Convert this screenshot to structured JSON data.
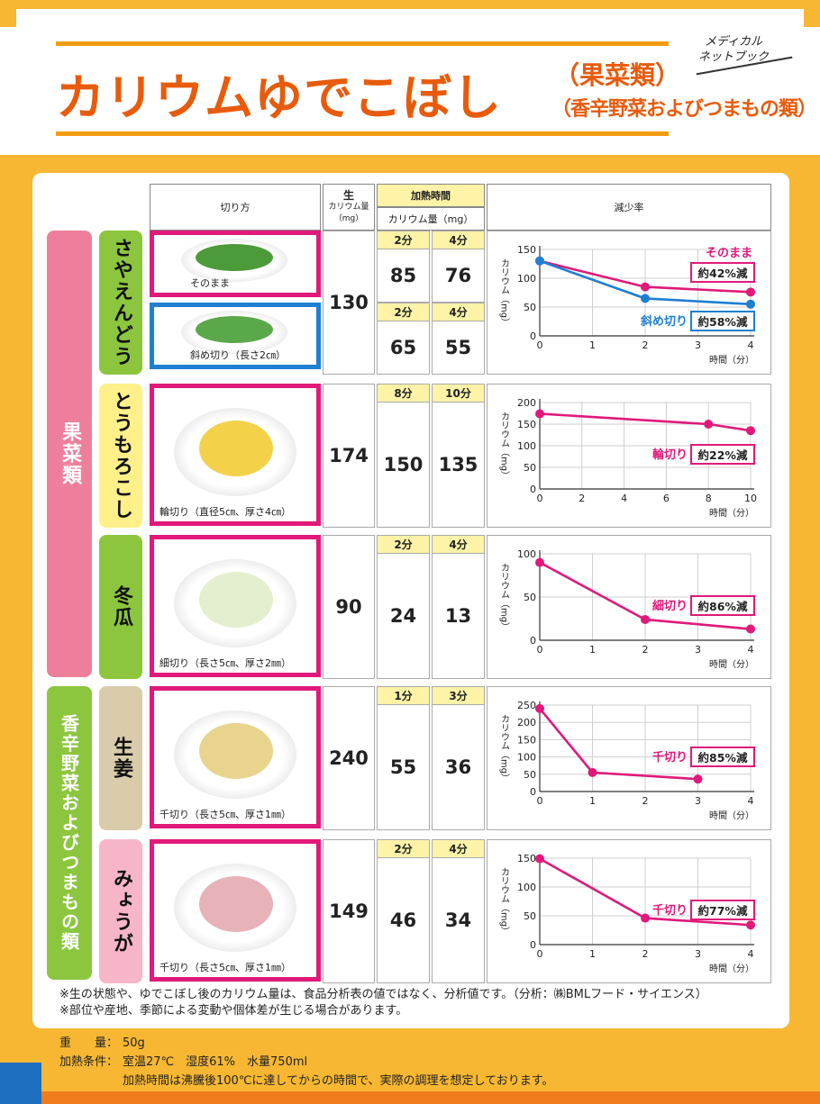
{
  "header": {
    "title_main": "カリウムゆでこぼし",
    "title_sub1": "（果菜類）",
    "title_sub2": "（香辛野菜およびつまもの類）",
    "brand_line1": "メディカル",
    "brand_line2": "ネットブック"
  },
  "table_header": {
    "cut": "切り方",
    "raw_title": "生",
    "raw_sub": "カリウム量（mg）",
    "heat_title": "加熱時間",
    "heat_sub": "カリウム量（mg）",
    "rate": "減少率"
  },
  "categories": [
    {
      "label": "果菜類",
      "color": "#ee7f9c"
    },
    {
      "label": "香辛野菜およびつまもの類",
      "color": "#8cc63f"
    }
  ],
  "rows": [
    {
      "veg": "さやえんどう",
      "veg_color": "#8cc63f",
      "raw": "130",
      "photos": [
        {
          "caption": "そのまま",
          "border": "#e0197a",
          "food": "#4c9a3a"
        },
        {
          "caption": "斜め切り（長さ2㎝）",
          "border": "#1f7fd1",
          "food": "#5aa84a"
        }
      ],
      "heat_sets": [
        {
          "t1": "2分",
          "t2": "4分",
          "v1": "85",
          "v2": "76"
        },
        {
          "t1": "2分",
          "t2": "4分",
          "v1": "65",
          "v2": "55"
        }
      ]
    },
    {
      "veg": "とうもろこし",
      "veg_color": "#fff08a",
      "raw": "174",
      "photos": [
        {
          "caption": "輪切り（直径5㎝、厚さ4㎝）",
          "border": "#e0197a",
          "food": "#f3d24a"
        }
      ],
      "heat_sets": [
        {
          "t1": "8分",
          "t2": "10分",
          "v1": "150",
          "v2": "135"
        }
      ]
    },
    {
      "veg": "冬瓜",
      "veg_color": "#8cc63f",
      "raw": "90",
      "photos": [
        {
          "caption": "細切り（長さ5㎝、厚さ2㎜）",
          "border": "#e0197a",
          "food": "#e4efcf"
        }
      ],
      "heat_sets": [
        {
          "t1": "2分",
          "t2": "4分",
          "v1": "24",
          "v2": "13"
        }
      ]
    },
    {
      "veg": "生姜",
      "veg_color": "#d9ccaa",
      "raw": "240",
      "photos": [
        {
          "caption": "千切り（長さ5㎝、厚さ1㎜）",
          "border": "#e0197a",
          "food": "#e8d48c"
        }
      ],
      "heat_sets": [
        {
          "t1": "1分",
          "t2": "3分",
          "v1": "55",
          "v2": "36"
        }
      ]
    },
    {
      "veg": "みょうが",
      "veg_color": "#f7b6c8",
      "raw": "149",
      "photos": [
        {
          "caption": "千切り（長さ5㎝、厚さ1㎜）",
          "border": "#e0197a",
          "food": "#e7b3b8"
        }
      ],
      "heat_sets": [
        {
          "t1": "2分",
          "t2": "4分",
          "v1": "46",
          "v2": "34"
        }
      ]
    }
  ],
  "chart_data": [
    {
      "type": "line",
      "ylabel": "カリウム（mg）",
      "xlabel": "時間（分）",
      "ylim": [
        0,
        150
      ],
      "yticks": [
        0,
        50,
        100,
        150
      ],
      "xlim": [
        0,
        4
      ],
      "xticks": [
        0,
        1,
        2,
        3,
        4
      ],
      "series": [
        {
          "name": "そのまま",
          "color": "#e0197a",
          "x": [
            0,
            2,
            4
          ],
          "y": [
            130,
            85,
            76
          ],
          "rate": "約42%減"
        },
        {
          "name": "斜め切り",
          "color": "#1f7fd1",
          "x": [
            0,
            2,
            4
          ],
          "y": [
            130,
            65,
            55
          ],
          "rate": "約58%減"
        }
      ]
    },
    {
      "type": "line",
      "ylabel": "カリウム（mg）",
      "xlabel": "時間（分）",
      "ylim": [
        0,
        200
      ],
      "yticks": [
        0,
        50,
        100,
        150,
        200
      ],
      "xlim": [
        0,
        10
      ],
      "xticks": [
        0,
        2,
        4,
        6,
        8,
        10
      ],
      "series": [
        {
          "name": "輪切り",
          "color": "#e0197a",
          "x": [
            0,
            8,
            10
          ],
          "y": [
            174,
            150,
            135
          ],
          "rate": "約22%減"
        }
      ]
    },
    {
      "type": "line",
      "ylabel": "カリウム（mg）",
      "xlabel": "時間（分）",
      "ylim": [
        0,
        100
      ],
      "yticks": [
        0,
        50,
        100
      ],
      "xlim": [
        0,
        4
      ],
      "xticks": [
        0,
        1,
        2,
        3,
        4
      ],
      "series": [
        {
          "name": "細切り",
          "color": "#e0197a",
          "x": [
            0,
            2,
            4
          ],
          "y": [
            90,
            24,
            13
          ],
          "rate": "約86%減"
        }
      ]
    },
    {
      "type": "line",
      "ylabel": "カリウム（mg）",
      "xlabel": "時間（分）",
      "ylim": [
        0,
        250
      ],
      "yticks": [
        0,
        50,
        100,
        150,
        200,
        250
      ],
      "xlim": [
        0,
        4
      ],
      "xticks": [
        0,
        1,
        2,
        3,
        4
      ],
      "series": [
        {
          "name": "千切り",
          "color": "#e0197a",
          "x": [
            0,
            1,
            3
          ],
          "y": [
            240,
            55,
            36
          ],
          "rate": "約85%減"
        }
      ]
    },
    {
      "type": "line",
      "ylabel": "カリウム（mg）",
      "xlabel": "時間（分）",
      "ylim": [
        0,
        150
      ],
      "yticks": [
        0,
        50,
        100,
        150
      ],
      "xlim": [
        0,
        4
      ],
      "xticks": [
        0,
        1,
        2,
        3,
        4
      ],
      "series": [
        {
          "name": "千切り",
          "color": "#e0197a",
          "x": [
            0,
            2,
            4
          ],
          "y": [
            149,
            46,
            34
          ],
          "rate": "約77%減"
        }
      ]
    }
  ],
  "notes": [
    "※生の状態や、ゆでこぼし後のカリウム量は、食品分析表の値ではなく、分析値です。（分析：㈱BMLフード・サイエンス）",
    "※部位や産地、季節による変動や個体差が生じる場合があります。"
  ],
  "conditions": {
    "weight_label": "重　　量：",
    "weight": "50g",
    "heat_label": "加熱条件：",
    "heat": "室温27℃　湿度61%　水量750ml",
    "heat2": "加熱時間は沸騰後100℃に達してからの時間で、実際の調理を想定しております。"
  }
}
